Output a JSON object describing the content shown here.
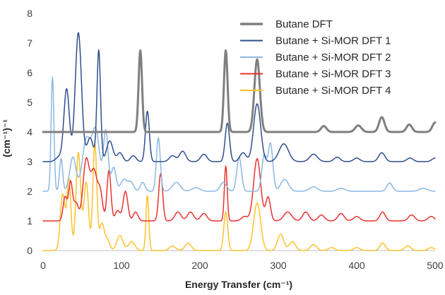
{
  "chart_data": {
    "type": "line",
    "title": "",
    "xlabel": "Energy Transfer (cm⁻¹)",
    "ylabel": "(cm⁻¹)⁻¹",
    "xlim": [
      0,
      500
    ],
    "ylim": [
      0,
      8
    ],
    "xticks": [
      0,
      100,
      200,
      300,
      400,
      500
    ],
    "yticks": [
      0,
      1,
      2,
      3,
      4,
      5,
      6,
      7,
      8
    ],
    "grid": false,
    "legend_position": "top-right",
    "series": [
      {
        "name": "Butane DFT",
        "color": "#7f7f7f",
        "width": 3,
        "baseline": 4.0,
        "peaks": [
          [
            124,
            2.75,
            2.2
          ],
          [
            233,
            2.75,
            2.3
          ],
          [
            273,
            2.45,
            3.5
          ],
          [
            358,
            0.2,
            3.5
          ],
          [
            402,
            0.22,
            4.0
          ],
          [
            432,
            0.5,
            3.5
          ],
          [
            467,
            0.25,
            3.5
          ],
          [
            500,
            0.32,
            3.5
          ]
        ]
      },
      {
        "name": "Butane + Si-MOR DFT 1",
        "color": "#2f4d8c",
        "width": 1.5,
        "baseline": 3.0,
        "peaks": [
          [
            20,
            0.15,
            4
          ],
          [
            30,
            2.45,
            3.5
          ],
          [
            45,
            4.35,
            4
          ],
          [
            60,
            0.8,
            4
          ],
          [
            71,
            3.75,
            2.3
          ],
          [
            85,
            0.7,
            4
          ],
          [
            98,
            0.3,
            3.5
          ],
          [
            115,
            0.2,
            3.5
          ],
          [
            133,
            1.7,
            2.5
          ],
          [
            165,
            0.2,
            4
          ],
          [
            178,
            0.35,
            4
          ],
          [
            205,
            0.25,
            4
          ],
          [
            235,
            1.3,
            2.8
          ],
          [
            255,
            0.3,
            4
          ],
          [
            273,
            1.95,
            4.5
          ],
          [
            307,
            0.6,
            6
          ],
          [
            345,
            0.25,
            5
          ],
          [
            375,
            0.15,
            4
          ],
          [
            400,
            0.12,
            4
          ],
          [
            432,
            0.3,
            4
          ],
          [
            468,
            0.12,
            4
          ],
          [
            500,
            0.12,
            4
          ]
        ]
      },
      {
        "name": "Butane + Si-MOR DFT 2",
        "color": "#8bb8e2",
        "width": 1.5,
        "baseline": 2.0,
        "peaks": [
          [
            12,
            3.85,
            1.8
          ],
          [
            23,
            1.1,
            2
          ],
          [
            38,
            1.15,
            4
          ],
          [
            55,
            1.7,
            5
          ],
          [
            67,
            2.05,
            5
          ],
          [
            80,
            2.0,
            3
          ],
          [
            90,
            0.8,
            3
          ],
          [
            103,
            0.4,
            4
          ],
          [
            112,
            0.3,
            3.5
          ],
          [
            127,
            0.3,
            3
          ],
          [
            147,
            1.8,
            2.5
          ],
          [
            170,
            0.3,
            5
          ],
          [
            195,
            0.12,
            5
          ],
          [
            230,
            0.3,
            4
          ],
          [
            250,
            1.15,
            3
          ],
          [
            282,
            1.2,
            3
          ],
          [
            290,
            1.6,
            3
          ],
          [
            308,
            0.4,
            5
          ],
          [
            345,
            0.15,
            5
          ],
          [
            380,
            0.1,
            5
          ],
          [
            442,
            0.28,
            3.5
          ],
          [
            485,
            0.1,
            5
          ]
        ]
      },
      {
        "name": "Butane + Si-MOR DFT 3",
        "color": "#e8322f",
        "width": 1.5,
        "baseline": 1.0,
        "peaks": [
          [
            28,
            0.8,
            2.5
          ],
          [
            35,
            1.3,
            2.5
          ],
          [
            42,
            0.6,
            3
          ],
          [
            55,
            2.05,
            4
          ],
          [
            65,
            1.65,
            4
          ],
          [
            73,
            0.9,
            3
          ],
          [
            84,
            1.7,
            2.5
          ],
          [
            95,
            0.35,
            3
          ],
          [
            105,
            1.0,
            3
          ],
          [
            118,
            0.3,
            3
          ],
          [
            150,
            1.6,
            2.5
          ],
          [
            172,
            0.3,
            4
          ],
          [
            188,
            0.3,
            4
          ],
          [
            205,
            0.25,
            4
          ],
          [
            233,
            1.85,
            1.8
          ],
          [
            257,
            0.15,
            4
          ],
          [
            273,
            2.1,
            4.5
          ],
          [
            287,
            0.8,
            3
          ],
          [
            312,
            0.3,
            5
          ],
          [
            335,
            0.3,
            4
          ],
          [
            355,
            0.2,
            4
          ],
          [
            380,
            0.25,
            4
          ],
          [
            400,
            0.15,
            4
          ],
          [
            433,
            0.3,
            3.5
          ],
          [
            470,
            0.2,
            4
          ],
          [
            495,
            0.15,
            4
          ]
        ]
      },
      {
        "name": "Butane + Si-MOR DFT 4",
        "color": "#ffc12b",
        "width": 1.5,
        "baseline": 0.0,
        "peaks": [
          [
            25,
            1.9,
            3
          ],
          [
            33,
            2.4,
            2.5
          ],
          [
            45,
            3.3,
            3
          ],
          [
            55,
            2.3,
            3
          ],
          [
            66,
            3.6,
            2.5
          ],
          [
            75,
            0.9,
            3
          ],
          [
            82,
            0.35,
            3
          ],
          [
            98,
            0.5,
            4
          ],
          [
            113,
            0.3,
            4
          ],
          [
            133,
            1.85,
            1.8
          ],
          [
            165,
            0.15,
            4
          ],
          [
            185,
            0.25,
            4
          ],
          [
            233,
            1.3,
            2.5
          ],
          [
            273,
            1.6,
            4.5
          ],
          [
            303,
            0.55,
            4
          ],
          [
            318,
            0.3,
            4
          ],
          [
            345,
            0.2,
            4
          ],
          [
            368,
            0.1,
            4
          ],
          [
            400,
            0.1,
            4
          ],
          [
            433,
            0.25,
            3.5
          ],
          [
            465,
            0.15,
            4
          ],
          [
            495,
            0.1,
            4
          ]
        ]
      }
    ]
  }
}
